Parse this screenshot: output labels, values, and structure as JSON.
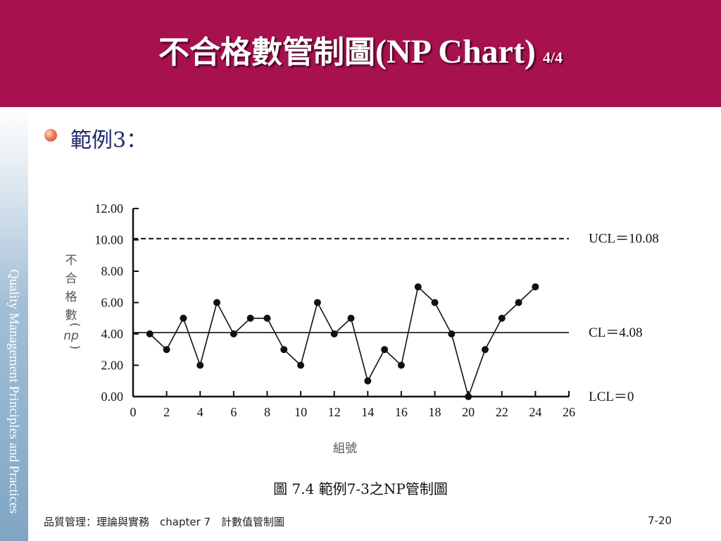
{
  "slide": {
    "title_cn": "不合格數管制圖",
    "title_en": "(NP Chart)",
    "title_page": "4/4",
    "bullet_text": "範例3：",
    "caption": "圖 7.4  範例7-3之NP管制圖",
    "footer_left": "品質管理：理論與實務　chapter 7　計數值管制圖",
    "footer_right": "7-20",
    "sidebar_text": "Quality Management Principles and Practices",
    "colors": {
      "header": "#a6114e",
      "title_text": "#ffffff",
      "bullet": "#e8674a"
    }
  },
  "chart_data": {
    "type": "line",
    "xlabel": "組號",
    "ylabel_cn": [
      "不",
      "合",
      "格",
      "數"
    ],
    "ylabel_var": "np",
    "x": [
      1,
      2,
      3,
      4,
      5,
      6,
      7,
      8,
      9,
      10,
      11,
      12,
      13,
      14,
      15,
      16,
      17,
      18,
      19,
      20,
      21,
      22,
      23,
      24
    ],
    "values": [
      4,
      3,
      5,
      2,
      6,
      4,
      5,
      5,
      3,
      2,
      6,
      4,
      5,
      1,
      3,
      2,
      7,
      6,
      4,
      0,
      3,
      5,
      6,
      7
    ],
    "xlim": [
      0,
      26
    ],
    "ylim": [
      0,
      12
    ],
    "x_ticks": [
      "0",
      "2",
      "4",
      "6",
      "8",
      "10",
      "12",
      "14",
      "16",
      "18",
      "20",
      "22",
      "24",
      "26"
    ],
    "y_ticks": [
      "0.00",
      "2.00",
      "4.00",
      "6.00",
      "8.00",
      "10.00",
      "12.00"
    ],
    "limits": [
      {
        "name": "UCL",
        "value": 10.08,
        "label": "UCL＝10.08",
        "style": "dashed"
      },
      {
        "name": "CL",
        "value": 4.08,
        "label": "CL＝4.08",
        "style": "solid"
      },
      {
        "name": "LCL",
        "value": 0,
        "label": "LCL＝0",
        "style": "solid"
      }
    ],
    "grid": false
  }
}
